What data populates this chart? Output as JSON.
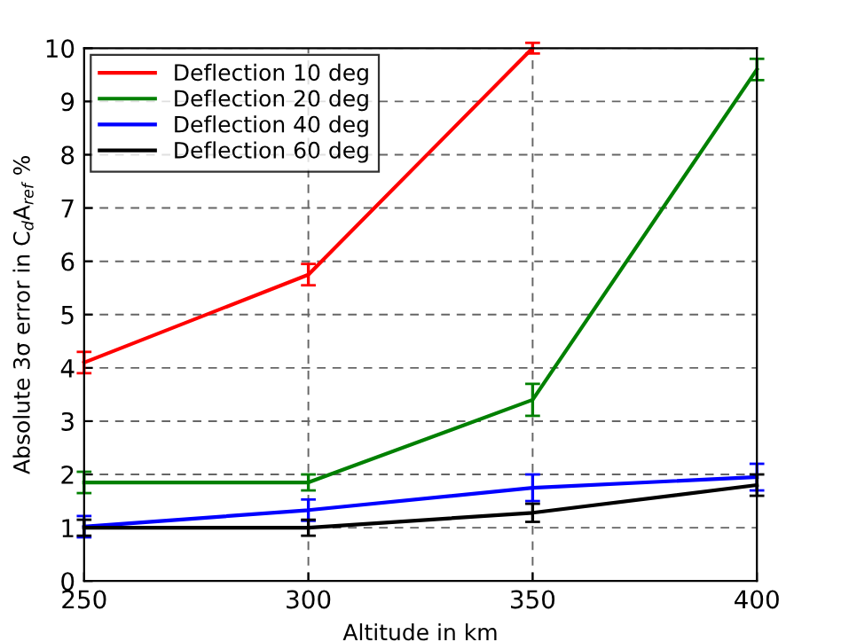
{
  "chart_data": {
    "type": "line",
    "xlabel": "Altitude in km",
    "ylabel": "Absolute 3σ error in C$_{d}$A$_{ref}$ %",
    "x": [
      250,
      300,
      350,
      400
    ],
    "series": [
      {
        "name": "Deflection 10 deg",
        "color": "#ff0000",
        "values": [
          4.1,
          5.75,
          10.0,
          null
        ],
        "errors": [
          0.2,
          0.2,
          0.1,
          null
        ]
      },
      {
        "name": "Deflection 20 deg",
        "color": "#008000",
        "values": [
          1.85,
          1.85,
          3.4,
          9.6
        ],
        "errors": [
          0.2,
          0.15,
          0.3,
          0.2
        ]
      },
      {
        "name": "Deflection 40 deg",
        "color": "#0000ff",
        "values": [
          1.02,
          1.33,
          1.75,
          1.95
        ],
        "errors": [
          0.2,
          0.2,
          0.25,
          0.25
        ]
      },
      {
        "name": "Deflection 60 deg",
        "color": "#000000",
        "values": [
          1.0,
          1.0,
          1.28,
          1.8
        ],
        "errors": [
          0.15,
          0.15,
          0.17,
          0.2
        ]
      }
    ],
    "xlim": [
      250,
      400
    ],
    "ylim": [
      0,
      10
    ],
    "xticks": [
      250,
      300,
      350,
      400
    ],
    "yticks": [
      0,
      1,
      2,
      3,
      4,
      5,
      6,
      7,
      8,
      9,
      10
    ],
    "grid": true,
    "legend": "top left",
    "line_style": "solid",
    "marker": "none"
  }
}
